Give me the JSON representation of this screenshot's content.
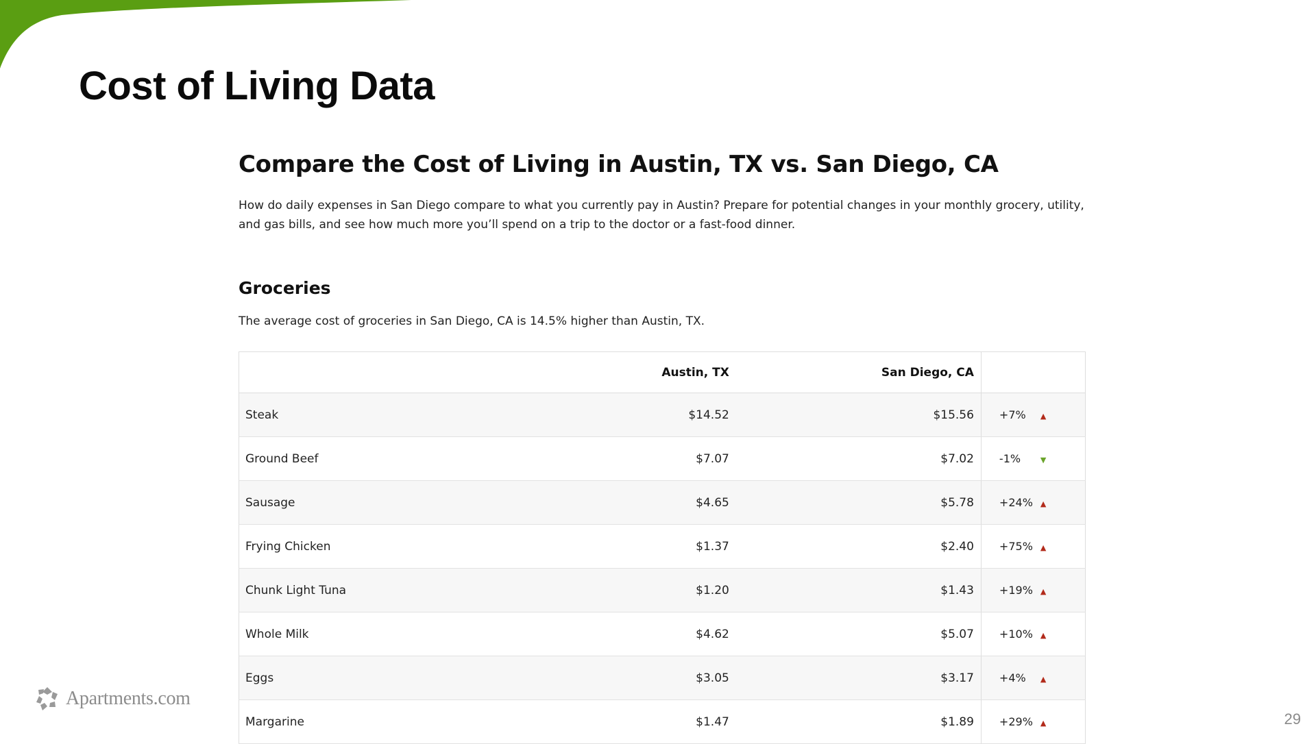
{
  "slide": {
    "title": "Cost of Living Data",
    "page_number": "29",
    "logo_text": "Apartments.com",
    "accent_color": "#5a9e12"
  },
  "section": {
    "heading": "Compare the Cost of Living in Austin, TX vs. San Diego, CA",
    "intro": "How do daily expenses in San Diego compare to what you currently pay in Austin? Prepare for potential changes in your monthly grocery, utility, and gas bills, and see how much more you’ll spend on a trip to the doctor or a fast-food dinner."
  },
  "groceries": {
    "heading": "Groceries",
    "summary": "The average cost of groceries in San Diego, CA is 14.5% higher than Austin, TX.",
    "columns": [
      "",
      "Austin, TX",
      "San Diego, CA",
      ""
    ],
    "rows": [
      {
        "item": "Steak",
        "austin": "$14.52",
        "san_diego": "$15.56",
        "change": "+7%",
        "direction": "up"
      },
      {
        "item": "Ground Beef",
        "austin": "$7.07",
        "san_diego": "$7.02",
        "change": "-1%",
        "direction": "down"
      },
      {
        "item": "Sausage",
        "austin": "$4.65",
        "san_diego": "$5.78",
        "change": "+24%",
        "direction": "up"
      },
      {
        "item": "Frying Chicken",
        "austin": "$1.37",
        "san_diego": "$2.40",
        "change": "+75%",
        "direction": "up"
      },
      {
        "item": "Chunk Light Tuna",
        "austin": "$1.20",
        "san_diego": "$1.43",
        "change": "+19%",
        "direction": "up"
      },
      {
        "item": "Whole Milk",
        "austin": "$4.62",
        "san_diego": "$5.07",
        "change": "+10%",
        "direction": "up"
      },
      {
        "item": "Eggs",
        "austin": "$3.05",
        "san_diego": "$3.17",
        "change": "+4%",
        "direction": "up"
      },
      {
        "item": "Margarine",
        "austin": "$1.47",
        "san_diego": "$1.89",
        "change": "+29%",
        "direction": "up"
      }
    ],
    "colors": {
      "up": "#b22b1b",
      "down": "#6aa42a"
    }
  }
}
